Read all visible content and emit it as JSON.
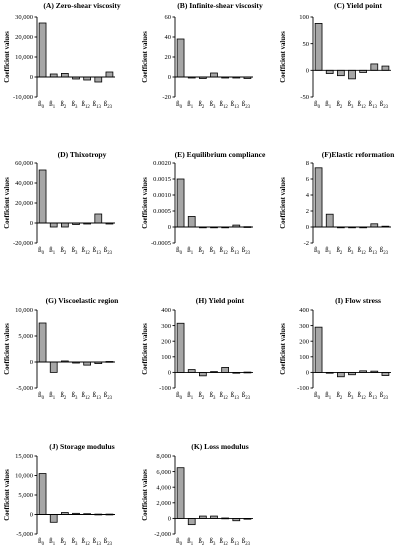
{
  "figure": {
    "y_axis_label": "Coefficient values",
    "coefficient_labels": [
      {
        "main": "ß",
        "sub": "0"
      },
      {
        "main": "ß",
        "sub": "1"
      },
      {
        "main": "ß",
        "sub": "2"
      },
      {
        "main": "ß",
        "sub": "3"
      },
      {
        "main": "ß",
        "sub": "12"
      },
      {
        "main": "ß",
        "sub": "13"
      },
      {
        "main": "ß",
        "sub": "23"
      }
    ],
    "bar_fill": "#a6a6a6",
    "bar_stroke": "#000000"
  },
  "chart_data": [
    {
      "type": "bar",
      "title": "(A) Zero-shear viscosity",
      "ylabel": "Coefficient values",
      "categories": [
        "ß0",
        "ß1",
        "ß2",
        "ß3",
        "ß12",
        "ß13",
        "ß23"
      ],
      "values": [
        27000,
        1500,
        1800,
        -1000,
        -1500,
        -2500,
        2500
      ],
      "ylim": [
        -10000,
        30000
      ],
      "yticks": [
        -10000,
        0,
        10000,
        20000,
        30000
      ],
      "ytick_labels": [
        "-10,000",
        "0",
        "10,000",
        "20,000",
        "30,000"
      ]
    },
    {
      "type": "bar",
      "title": "(B) Infinite-shear viscosity",
      "ylabel": "Coefficient values",
      "categories": [
        "ß0",
        "ß1",
        "ß2",
        "ß3",
        "ß12",
        "ß13",
        "ß23"
      ],
      "values": [
        38,
        -1,
        -1.5,
        4,
        -1,
        -1,
        -1.5
      ],
      "ylim": [
        -20,
        60
      ],
      "yticks": [
        -20,
        0,
        20,
        40,
        60
      ],
      "ytick_labels": [
        "-20",
        "0",
        "20",
        "40",
        "60"
      ]
    },
    {
      "type": "bar",
      "title": "(C) Yield point",
      "ylabel": "Coefficient values",
      "categories": [
        "ß0",
        "ß1",
        "ß2",
        "ß3",
        "ß12",
        "ß13",
        "ß23"
      ],
      "values": [
        88,
        -6,
        -10,
        -16,
        -4,
        12,
        8
      ],
      "ylim": [
        -50,
        100
      ],
      "yticks": [
        -50,
        0,
        50,
        100
      ],
      "ytick_labels": [
        "-50",
        "0",
        "50",
        "100"
      ]
    },
    {
      "type": "bar",
      "title": "(D) Thixotropy",
      "ylabel": "Coefficient values",
      "categories": [
        "ß0",
        "ß1",
        "ß2",
        "ß3",
        "ß12",
        "ß13",
        "ß23"
      ],
      "values": [
        53000,
        -4000,
        -4000,
        -1500,
        -1000,
        9000,
        -1000
      ],
      "ylim": [
        -20000,
        60000
      ],
      "yticks": [
        -20000,
        0,
        20000,
        40000,
        60000
      ],
      "ytick_labels": [
        "-20,000",
        "0",
        "20,000",
        "40,000",
        "60,000"
      ]
    },
    {
      "type": "bar",
      "title": "(E) Equilibrium compliance",
      "ylabel": "Coefficient values",
      "categories": [
        "ß0",
        "ß1",
        "ß2",
        "ß3",
        "ß12",
        "ß13",
        "ß23"
      ],
      "values": [
        0.0015,
        0.00033,
        -2e-05,
        -2e-05,
        -2e-05,
        6e-05,
        1e-05
      ],
      "ylim": [
        -0.0005,
        0.002
      ],
      "yticks": [
        -0.0005,
        0,
        0.0005,
        0.001,
        0.0015,
        0.002
      ],
      "ytick_labels": [
        "-0.0005",
        "0",
        "0.0005",
        "0.0010",
        "0.0015",
        "0.0020"
      ]
    },
    {
      "type": "bar",
      "title": "(F)Elastic reformation",
      "ylabel": "Coefficient values",
      "categories": [
        "ß0",
        "ß1",
        "ß2",
        "ß3",
        "ß12",
        "ß13",
        "ß23"
      ],
      "values": [
        7.4,
        1.6,
        -0.1,
        -0.1,
        -0.1,
        0.4,
        0.1
      ],
      "ylim": [
        -2,
        8
      ],
      "yticks": [
        -2,
        0,
        2,
        4,
        6,
        8
      ],
      "ytick_labels": [
        "-2",
        "0",
        "2",
        "4",
        "6",
        "8"
      ]
    },
    {
      "type": "bar",
      "title": "(G) Viscoelastic region",
      "ylabel": "Coefficient values",
      "categories": [
        "ß0",
        "ß1",
        "ß2",
        "ß3",
        "ß12",
        "ß13",
        "ß23"
      ],
      "values": [
        7500,
        -2000,
        200,
        -200,
        -600,
        -300,
        100
      ],
      "ylim": [
        -5000,
        10000
      ],
      "yticks": [
        -5000,
        0,
        5000,
        10000
      ],
      "ytick_labels": [
        "-5,000",
        "0",
        "5,000",
        "10,000"
      ]
    },
    {
      "type": "bar",
      "title": "(H) Yield point",
      "ylabel": "Coefficient values",
      "categories": [
        "ß0",
        "ß1",
        "ß2",
        "ß3",
        "ß12",
        "ß13",
        "ß23"
      ],
      "values": [
        315,
        18,
        -22,
        5,
        32,
        -5,
        2
      ],
      "ylim": [
        -100,
        400
      ],
      "yticks": [
        -100,
        0,
        100,
        200,
        300,
        400
      ],
      "ytick_labels": [
        "-100",
        "0",
        "100",
        "200",
        "300",
        "400"
      ]
    },
    {
      "type": "bar",
      "title": "(I) Flow stress",
      "ylabel": "Coefficient values",
      "categories": [
        "ß0",
        "ß1",
        "ß2",
        "ß3",
        "ß12",
        "ß13",
        "ß23"
      ],
      "values": [
        290,
        -2,
        -28,
        -15,
        10,
        8,
        -20
      ],
      "ylim": [
        -100,
        400
      ],
      "yticks": [
        -100,
        0,
        100,
        200,
        300,
        400
      ],
      "ytick_labels": [
        "-100",
        "0",
        "100",
        "200",
        "300",
        "400"
      ]
    },
    {
      "type": "bar",
      "title": "(J) Storage modulus",
      "ylabel": "Coefficient values",
      "categories": [
        "ß0",
        "ß1",
        "ß2",
        "ß3",
        "ß12",
        "ß13",
        "ß23"
      ],
      "values": [
        10500,
        -2000,
        500,
        300,
        200,
        100,
        100
      ],
      "ylim": [
        -5000,
        15000
      ],
      "yticks": [
        -5000,
        0,
        5000,
        10000,
        15000
      ],
      "ytick_labels": [
        "-5,000",
        "0",
        "5,000",
        "10,000",
        "15,000"
      ]
    },
    {
      "type": "bar",
      "title": "(K) Loss modulus",
      "ylabel": "Coefficient values",
      "categories": [
        "ß0",
        "ß1",
        "ß2",
        "ß3",
        "ß12",
        "ß13",
        "ß23"
      ],
      "values": [
        6500,
        -800,
        300,
        300,
        50,
        -300,
        -50
      ],
      "ylim": [
        -2000,
        8000
      ],
      "yticks": [
        -2000,
        0,
        2000,
        4000,
        6000,
        8000
      ],
      "ytick_labels": [
        "-2,000",
        "0",
        "2,000",
        "4,000",
        "6,000",
        "8,000"
      ]
    }
  ]
}
